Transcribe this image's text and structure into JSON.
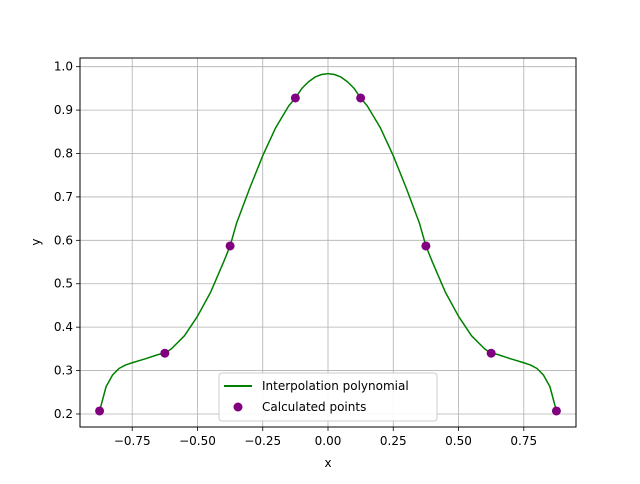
{
  "chart_data": {
    "type": "line",
    "title": "",
    "xlabel": "x",
    "ylabel": "y",
    "xlim": [
      -0.95,
      0.95
    ],
    "ylim": [
      0.17,
      1.02
    ],
    "grid": true,
    "legend_placement": "bottom-center",
    "x_ticks": [
      -0.75,
      -0.5,
      -0.25,
      0.0,
      0.25,
      0.5,
      0.75
    ],
    "x_tick_labels": [
      "−0.75",
      "−0.50",
      "−0.25",
      "0.00",
      "0.25",
      "0.50",
      "0.75"
    ],
    "y_ticks": [
      0.2,
      0.3,
      0.4,
      0.5,
      0.6,
      0.7,
      0.8,
      0.9,
      1.0
    ],
    "y_tick_labels": [
      "0.2",
      "0.3",
      "0.4",
      "0.5",
      "0.6",
      "0.7",
      "0.8",
      "0.9",
      "1.0"
    ],
    "series": [
      {
        "name": "Interpolation polynomial",
        "kind": "line",
        "color": "#008000",
        "x": [
          -0.875,
          -0.85,
          -0.825,
          -0.8,
          -0.775,
          -0.75,
          -0.7,
          -0.65,
          -0.625,
          -0.6,
          -0.55,
          -0.5,
          -0.45,
          -0.4,
          -0.375,
          -0.35,
          -0.3,
          -0.25,
          -0.2,
          -0.15,
          -0.125,
          -0.1,
          -0.075,
          -0.05,
          -0.025,
          0.0,
          0.025,
          0.05,
          0.075,
          0.1,
          0.125,
          0.15,
          0.2,
          0.25,
          0.3,
          0.35,
          0.375,
          0.4,
          0.45,
          0.5,
          0.55,
          0.6,
          0.625,
          0.65,
          0.7,
          0.75,
          0.775,
          0.8,
          0.825,
          0.85,
          0.875
        ],
        "y": [
          0.207,
          0.263,
          0.29,
          0.305,
          0.313,
          0.318,
          0.327,
          0.337,
          0.34,
          0.35,
          0.38,
          0.425,
          0.48,
          0.55,
          0.587,
          0.64,
          0.72,
          0.795,
          0.86,
          0.91,
          0.928,
          0.95,
          0.965,
          0.976,
          0.982,
          0.984,
          0.982,
          0.976,
          0.965,
          0.95,
          0.928,
          0.91,
          0.86,
          0.795,
          0.72,
          0.64,
          0.587,
          0.55,
          0.48,
          0.425,
          0.38,
          0.35,
          0.34,
          0.337,
          0.327,
          0.318,
          0.313,
          0.305,
          0.29,
          0.263,
          0.207
        ]
      },
      {
        "name": "Calculated points",
        "kind": "scatter",
        "color": "#800080",
        "x": [
          -0.875,
          -0.625,
          -0.375,
          -0.125,
          0.125,
          0.375,
          0.625,
          0.875
        ],
        "y": [
          0.207,
          0.34,
          0.587,
          0.928,
          0.928,
          0.587,
          0.34,
          0.207
        ]
      }
    ]
  }
}
